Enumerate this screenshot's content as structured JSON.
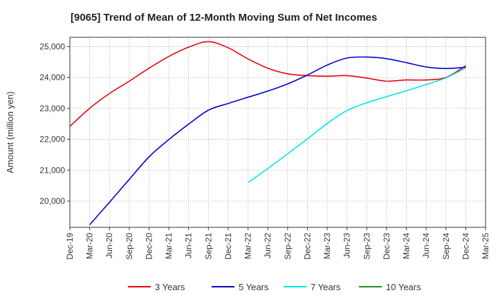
{
  "chart_data": {
    "type": "line",
    "title": "[9065]  Trend of Mean of 12-Month Moving Sum of Net Incomes",
    "xlabel": "",
    "ylabel": "Amount (million yen)",
    "ylim": [
      19150,
      25300
    ],
    "yticks": [
      20000,
      21000,
      22000,
      23000,
      24000,
      25000
    ],
    "ytick_labels": [
      "20,000",
      "21,000",
      "22,000",
      "23,000",
      "24,000",
      "25,000"
    ],
    "xticks": [
      "Dec-19",
      "Mar-20",
      "Jun-20",
      "Sep-20",
      "Dec-20",
      "Mar-21",
      "Jun-21",
      "Sep-21",
      "Dec-21",
      "Mar-22",
      "Jun-22",
      "Sep-22",
      "Dec-22",
      "Mar-23",
      "Jun-23",
      "Sep-23",
      "Dec-23",
      "Mar-24",
      "Jun-24",
      "Sep-24",
      "Dec-24",
      "Mar-25"
    ],
    "grid": true,
    "legend_position": "bottom",
    "series": [
      {
        "name": "3 Years",
        "color": "#e8000b",
        "x": [
          "Dec-19",
          "Mar-20",
          "Jun-20",
          "Sep-20",
          "Dec-20",
          "Mar-21",
          "Jun-21",
          "Sep-21",
          "Dec-21",
          "Mar-22",
          "Jun-22",
          "Sep-22",
          "Dec-22",
          "Mar-23",
          "Jun-23",
          "Sep-23",
          "Dec-23",
          "Mar-24",
          "Jun-24",
          "Sep-24",
          "Dec-24"
        ],
        "values": [
          22420,
          23000,
          23480,
          23880,
          24300,
          24680,
          24980,
          25160,
          24960,
          24600,
          24300,
          24120,
          24060,
          24040,
          24060,
          23980,
          23880,
          23920,
          23920,
          24000,
          24380
        ]
      },
      {
        "name": "5 Years",
        "color": "#0000cc",
        "x": [
          "Mar-20",
          "Jun-20",
          "Sep-20",
          "Dec-20",
          "Mar-21",
          "Jun-21",
          "Sep-21",
          "Dec-21",
          "Mar-22",
          "Jun-22",
          "Sep-22",
          "Dec-22",
          "Mar-23",
          "Jun-23",
          "Sep-23",
          "Dec-23",
          "Mar-24",
          "Jun-24",
          "Sep-24",
          "Dec-24"
        ],
        "values": [
          19230,
          19960,
          20700,
          21430,
          21990,
          22490,
          22940,
          23160,
          23360,
          23560,
          23790,
          24080,
          24400,
          24630,
          24660,
          24610,
          24480,
          24340,
          24290,
          24330
        ]
      },
      {
        "name": "7 Years",
        "color": "#00e5e5",
        "x": [
          "Mar-22",
          "Jun-22",
          "Sep-22",
          "Dec-22",
          "Mar-23",
          "Jun-23",
          "Sep-23",
          "Dec-23",
          "Mar-24",
          "Jun-24",
          "Sep-24",
          "Dec-24"
        ],
        "values": [
          20600,
          21050,
          21530,
          22010,
          22510,
          22930,
          23180,
          23380,
          23570,
          23770,
          23990,
          24310
        ]
      },
      {
        "name": "10 Years",
        "color": "#228b22",
        "x": [],
        "values": []
      }
    ]
  }
}
